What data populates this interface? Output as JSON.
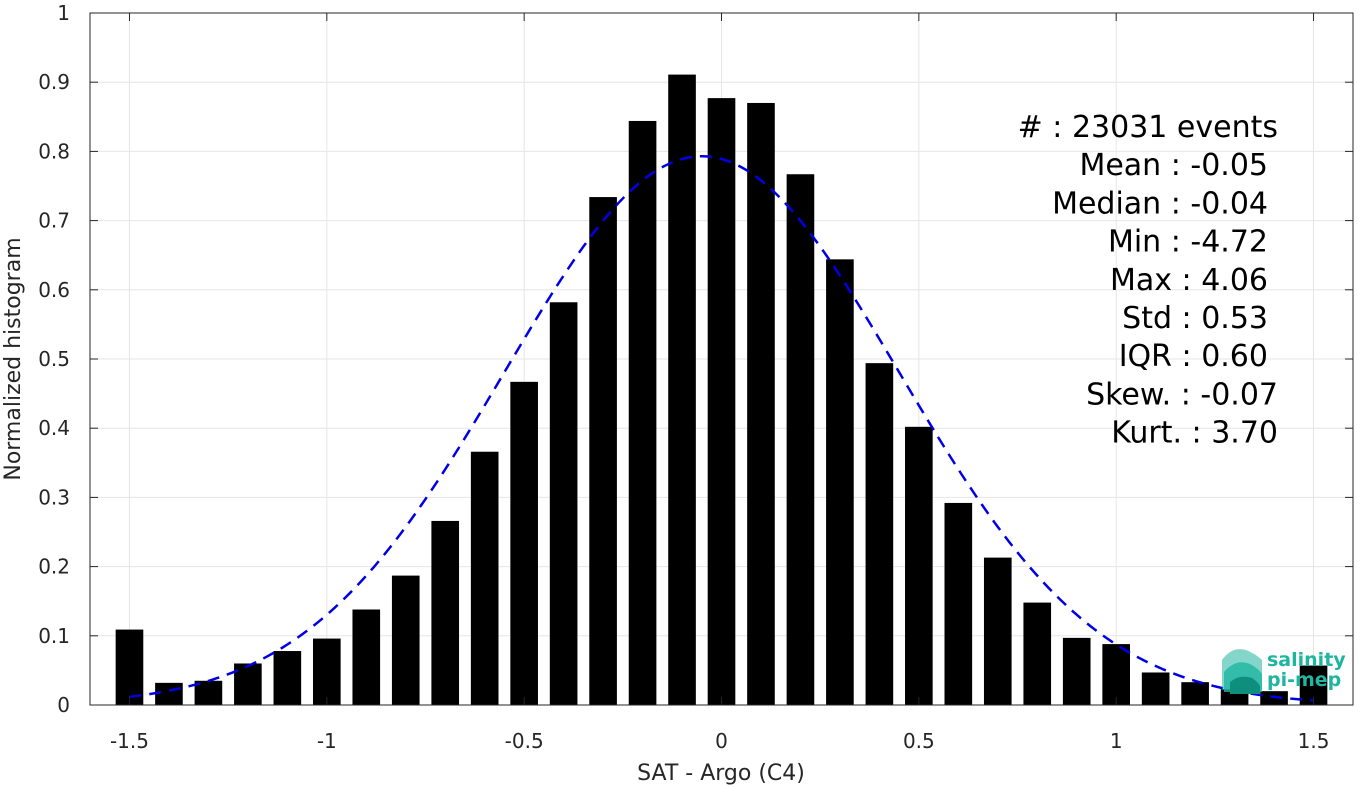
{
  "chart_data": {
    "type": "bar",
    "xlabel": "SAT - Argo (C4)",
    "ylabel": "Normalized histogram",
    "xlim": [
      -1.6,
      1.6
    ],
    "ylim": [
      0,
      1
    ],
    "xticks": [
      "-1.5",
      "-1",
      "-0.5",
      "0",
      "0.5",
      "1",
      "1.5"
    ],
    "xtick_values": [
      -1.5,
      -1,
      -0.5,
      0,
      0.5,
      1,
      1.5
    ],
    "yticks": [
      "0",
      "0.1",
      "0.2",
      "0.3",
      "0.4",
      "0.5",
      "0.6",
      "0.7",
      "0.8",
      "0.9",
      "1"
    ],
    "ytick_values": [
      0,
      0.1,
      0.2,
      0.3,
      0.4,
      0.5,
      0.6,
      0.7,
      0.8,
      0.9,
      1
    ],
    "grid": true,
    "bar_color": "#000000",
    "bins": [
      -1.5,
      -1.4,
      -1.3,
      -1.2,
      -1.1,
      -1.0,
      -0.9,
      -0.8,
      -0.7,
      -0.6,
      -0.5,
      -0.4,
      -0.3,
      -0.2,
      -0.1,
      0.0,
      0.1,
      0.2,
      0.3,
      0.4,
      0.5,
      0.6,
      0.7,
      0.8,
      0.9,
      1.0,
      1.1,
      1.2,
      1.3,
      1.4,
      1.5
    ],
    "values": [
      0.109,
      0.032,
      0.035,
      0.06,
      0.078,
      0.096,
      0.138,
      0.187,
      0.266,
      0.366,
      0.467,
      0.582,
      0.734,
      0.844,
      0.911,
      0.877,
      0.87,
      0.767,
      0.644,
      0.494,
      0.402,
      0.292,
      0.213,
      0.148,
      0.097,
      0.088,
      0.047,
      0.033,
      0.023,
      0.02,
      0.057
    ],
    "fit": {
      "type": "gaussian",
      "mean": -0.05,
      "std": 0.5,
      "peak": 0.793,
      "color": "#0000e6",
      "style": "dashed"
    },
    "stats": [
      "#  : 23031 events",
      "Mean : -0.05",
      "Median : -0.04",
      "Min : -4.72",
      "Max : 4.06",
      "Std : 0.53",
      "IQR : 0.60",
      "Skew. : -0.07",
      "Kurt. : 3.70"
    ]
  },
  "logo": {
    "line1": "salinity",
    "line2": "pi-mep",
    "color": "#1fb5a0"
  }
}
